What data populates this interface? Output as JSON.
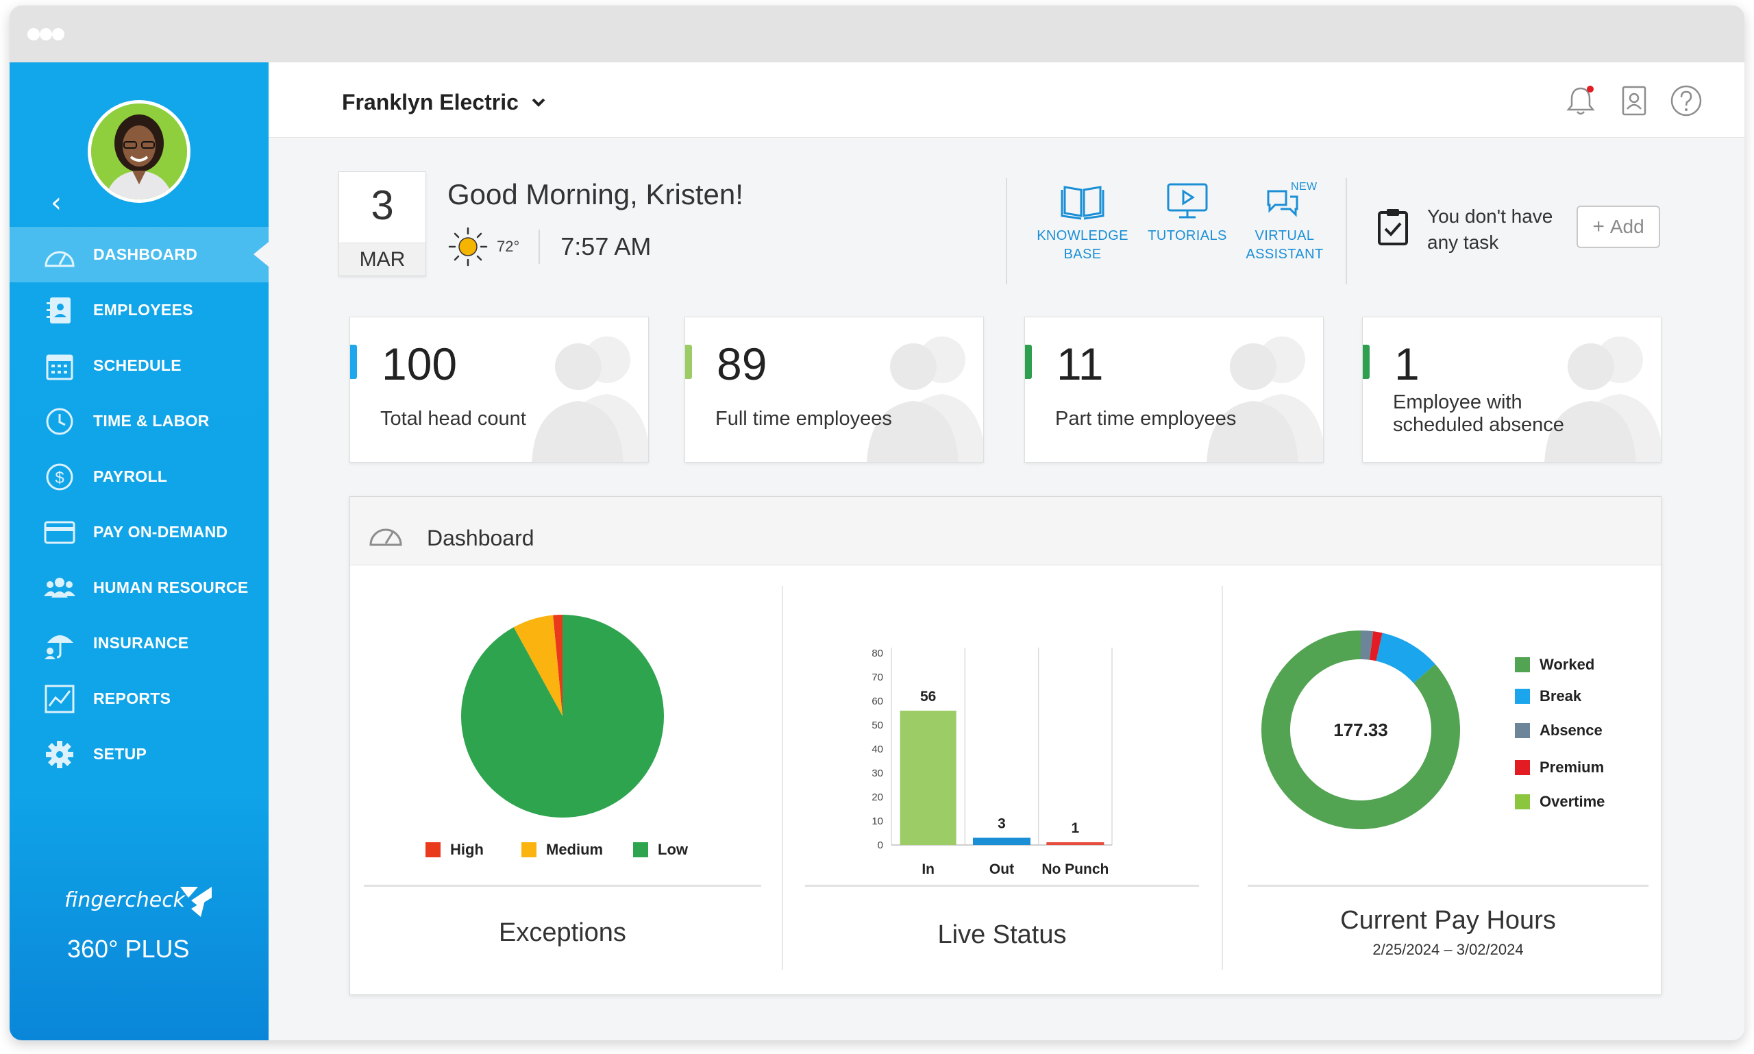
{
  "header": {
    "company": "Franklyn Electric"
  },
  "sidebar": {
    "items": [
      {
        "label": "DASHBOARD",
        "icon": "gauge-icon",
        "active": true
      },
      {
        "label": "EMPLOYEES",
        "icon": "address-book-icon",
        "active": false
      },
      {
        "label": "SCHEDULE",
        "icon": "calendar-icon",
        "active": false
      },
      {
        "label": "TIME & LABOR",
        "icon": "clock-icon",
        "active": false
      },
      {
        "label": "PAYROLL",
        "icon": "dollar-icon",
        "active": false
      },
      {
        "label": "PAY ON-DEMAND",
        "icon": "credit-card-icon",
        "active": false
      },
      {
        "label": "HUMAN RESOURCE",
        "icon": "users-icon",
        "active": false
      },
      {
        "label": "INSURANCE",
        "icon": "umbrella-icon",
        "active": false
      },
      {
        "label": "REPORTS",
        "icon": "line-chart-icon",
        "active": false
      },
      {
        "label": "SETUP",
        "icon": "gear-icon",
        "active": false
      }
    ],
    "brand": {
      "name": "fingercheck",
      "edition": "360° PLUS"
    }
  },
  "greeting": {
    "day": "3",
    "month": "MAR",
    "message": "Good Morning, Kristen!",
    "temperature": "72°",
    "time": "7:57 AM"
  },
  "quick_links": [
    {
      "line1": "KNOWLEDGE",
      "line2": "BASE",
      "icon": "book-icon"
    },
    {
      "line1": "TUTORIALS",
      "line2": "",
      "icon": "video-icon"
    },
    {
      "line1": "VIRTUAL",
      "line2": "ASSISTANT",
      "icon": "chat-icon",
      "badge": "NEW"
    }
  ],
  "tasks": {
    "line1": "You don't have",
    "line2": "any task",
    "add_label": "Add"
  },
  "stats": [
    {
      "value": "100",
      "line1": "Total head count",
      "line2": "",
      "accent": "#1ea7ec"
    },
    {
      "value": "89",
      "line1": "Full time employees",
      "line2": "",
      "accent": "#9ccc65"
    },
    {
      "value": "11",
      "line1": "Part time employees",
      "line2": "",
      "accent": "#2e9e4f"
    },
    {
      "value": "1",
      "line1": "Employee with",
      "line2": "scheduled absence",
      "accent": "#2e9e4f"
    }
  ],
  "dashboard": {
    "title": "Dashboard",
    "exceptions_title": "Exceptions",
    "live_status_title": "Live Status",
    "pay_hours_title": "Current Pay Hours",
    "pay_hours_period": "2/25/2024 – 3/02/2024",
    "pay_hours_center": "177.33"
  },
  "chart_data": [
    {
      "type": "pie",
      "title": "Exceptions",
      "categories": [
        "High",
        "Medium",
        "Low"
      ],
      "values": [
        1.5,
        6.5,
        92
      ],
      "colors": [
        "#ea3a1c",
        "#fbb40f",
        "#2ea44f"
      ],
      "legend": "bottom"
    },
    {
      "type": "bar",
      "title": "Live Status",
      "categories": [
        "In",
        "Out",
        "No Punch"
      ],
      "values": [
        56,
        3,
        1
      ],
      "colors": [
        "#9ccc65",
        "#1a8fd6",
        "#e84c3d"
      ],
      "ylim": [
        0,
        80
      ],
      "yticks": [
        0,
        10,
        20,
        30,
        40,
        50,
        60,
        70,
        80
      ],
      "grid": true
    },
    {
      "type": "pie",
      "title": "Current Pay Hours",
      "donut": true,
      "categories": [
        "Worked",
        "Break",
        "Absence",
        "Premium",
        "Overtime"
      ],
      "values": [
        86.5,
        10,
        2,
        1.5,
        0
      ],
      "colors": [
        "#52a352",
        "#1aa5ec",
        "#6d8598",
        "#e31b23",
        "#8cc63f"
      ],
      "legend": "right"
    }
  ]
}
